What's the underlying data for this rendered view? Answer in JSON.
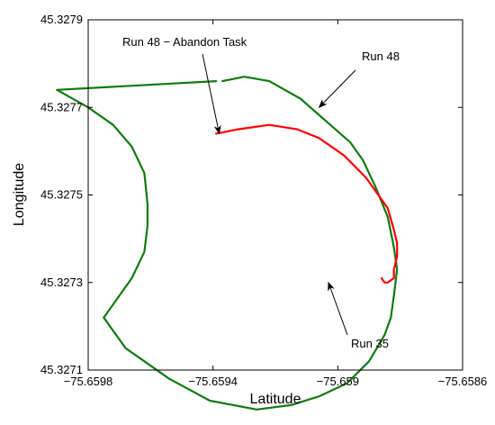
{
  "colors": {
    "run35": "#117a11",
    "run48": "#ff0000",
    "axis": "#000000",
    "background": "#ffffff"
  },
  "chart_data": {
    "type": "line",
    "title": "",
    "xlabel": "Latitude",
    "ylabel": "Longitude",
    "xlim": [
      -75.6598,
      -75.6586
    ],
    "ylim": [
      45.3271,
      45.3279
    ],
    "grid": false,
    "x_ticks": [
      -75.6598,
      -75.6594,
      -75.659,
      -75.6586
    ],
    "x_tick_labels": [
      "−75.6598",
      "−75.6594",
      "−75.659",
      "−75.6586"
    ],
    "y_ticks": [
      45.3271,
      45.3273,
      45.3275,
      45.3277,
      45.3279
    ],
    "y_tick_labels": [
      "45.3271",
      "45.3273",
      "45.3275",
      "45.3277",
      "45.3279"
    ],
    "series": [
      {
        "name": "Run 35",
        "color": "#117a11",
        "x": [
          -75.65937,
          -75.6593,
          -75.65922,
          -75.65912,
          -75.65904,
          -75.65896,
          -75.65892,
          -75.65888,
          -75.65884,
          -75.65882,
          -75.65881,
          -75.65882,
          -75.65883,
          -75.65885,
          -75.6589,
          -75.65897,
          -75.65906,
          -75.65915,
          -75.65926,
          -75.65941,
          -75.65954,
          -75.65968,
          -75.65975,
          -75.65972,
          -75.65966,
          -75.65962,
          -75.65961,
          -75.65961,
          -75.65962,
          -75.65966,
          -75.65972,
          -75.6598,
          -75.6599,
          -75.65939
        ],
        "y": [
          45.32776,
          45.32777,
          45.32776,
          45.32772,
          45.32767,
          45.32762,
          45.32758,
          45.32752,
          45.32745,
          45.32738,
          45.32733,
          45.32727,
          45.32722,
          45.32718,
          45.32712,
          45.32707,
          45.32704,
          45.32702,
          45.32701,
          45.32703,
          45.32708,
          45.32715,
          45.32722,
          45.32725,
          45.32731,
          45.32737,
          45.32743,
          45.32748,
          45.32755,
          45.32761,
          45.32766,
          45.3277,
          45.32774,
          45.32776
        ]
      },
      {
        "name": "Run 48",
        "color": "#ff0000",
        "x": [
          -75.65939,
          -75.65932,
          -75.65922,
          -75.65913,
          -75.65906,
          -75.65898,
          -75.65891,
          -75.65884,
          -75.65882,
          -75.65881,
          -75.65881,
          -75.65882,
          -75.65882,
          -75.65884,
          -75.65885,
          -75.65886
        ],
        "y": [
          45.32764,
          45.32765,
          45.32766,
          45.32765,
          45.32763,
          45.32759,
          45.32754,
          45.32747,
          45.32742,
          45.32739,
          45.32736,
          45.32733,
          45.32731,
          45.3273,
          45.3273,
          45.32731
        ]
      }
    ],
    "annotations": [
      {
        "text": "Run 48 − Abandon Task",
        "x": -75.65938,
        "y": 45.32764
      },
      {
        "text": "Run 48",
        "x": -75.65906,
        "y": 45.3277
      },
      {
        "text": "Run 35",
        "x": -75.65903,
        "y": 45.3273
      }
    ]
  }
}
